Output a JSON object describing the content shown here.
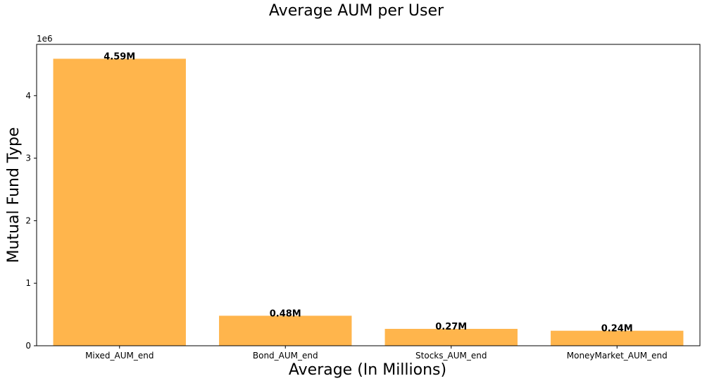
{
  "chart_data": {
    "type": "bar",
    "title": "Average AUM per User",
    "xlabel": "Average (In Millions)",
    "ylabel": "Mutual Fund Type",
    "y_offset_label": "1e6",
    "categories": [
      "Mixed_AUM_end",
      "Bond_AUM_end",
      "Stocks_AUM_end",
      "MoneyMarket_AUM_end"
    ],
    "values": [
      4590000,
      480000,
      270000,
      240000
    ],
    "data_labels": [
      "4.59M",
      "0.48M",
      "0.27M",
      "0.24M"
    ],
    "yticks": [
      0,
      1,
      2,
      3,
      4
    ],
    "ytick_scale": 1000000,
    "ylim": [
      0,
      4820000
    ],
    "bar_color": "#ffb54c",
    "grid": false,
    "legend": "none"
  }
}
